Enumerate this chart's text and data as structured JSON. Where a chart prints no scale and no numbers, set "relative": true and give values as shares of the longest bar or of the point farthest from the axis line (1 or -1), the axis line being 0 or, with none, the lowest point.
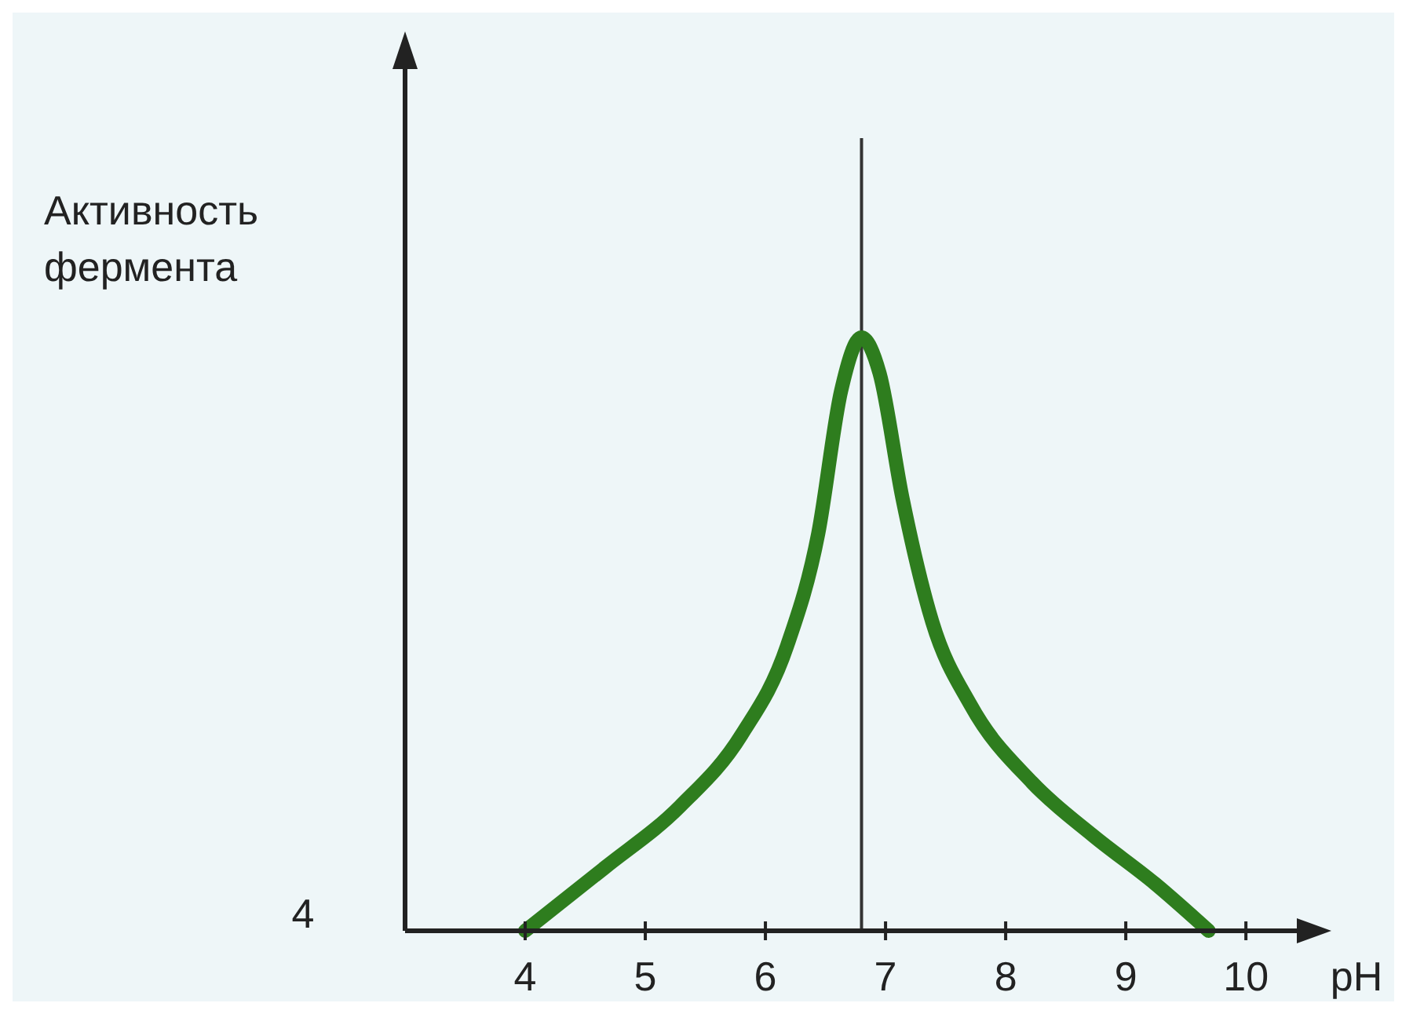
{
  "chart_data": {
    "type": "line",
    "relative": true,
    "ylabel": "Активность фермента",
    "xlabel": "pH",
    "xlim": [
      3,
      10.45
    ],
    "xticks": [
      4,
      5,
      6,
      7,
      8,
      9,
      10
    ],
    "annotations": [
      "4"
    ],
    "x": [
      4.0,
      4.66,
      5.29,
      5.8,
      6.18,
      6.44,
      6.63,
      6.8,
      6.95,
      7.14,
      7.39,
      7.71,
      8.22,
      8.73,
      9.24,
      9.69
    ],
    "series": [
      {
        "color": "#2e7d1e",
        "values": [
          0,
          0.106,
          0.21,
          0.33,
          0.48,
          0.67,
          0.91,
          1.0,
          0.94,
          0.73,
          0.52,
          0.38,
          0.25,
          0.16,
          0.08,
          0
        ]
      }
    ],
    "ref_lines": [
      {
        "axis": "x",
        "value": 6.8,
        "color": "#333333"
      }
    ],
    "marker": "none",
    "line_style": "solid"
  }
}
